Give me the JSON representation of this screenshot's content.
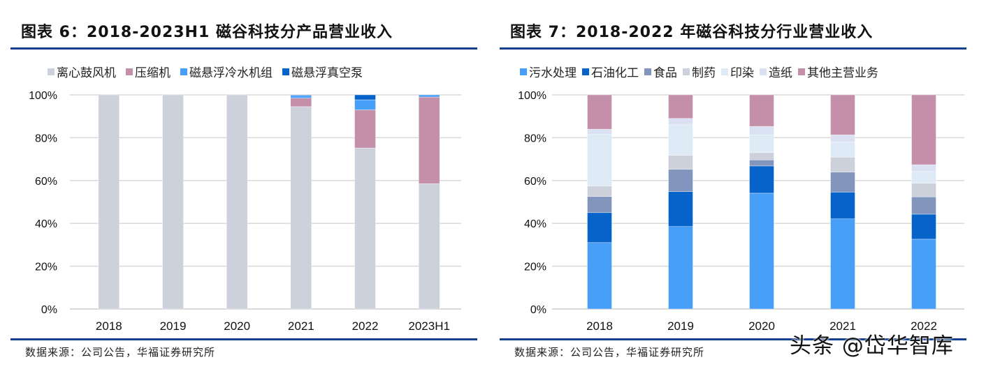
{
  "chart_data": [
    {
      "type": "bar",
      "stacked": true,
      "title": "图表 6：2018-2023H1 磁谷科技分产品营业收入",
      "xlabel": "",
      "ylabel": "",
      "ylim": [
        0,
        100
      ],
      "yticks": [
        "0%",
        "20%",
        "40%",
        "60%",
        "80%",
        "100%"
      ],
      "grid": true,
      "legend_position": "top",
      "categories": [
        "2018",
        "2019",
        "2020",
        "2021",
        "2022",
        "2023H1"
      ],
      "series": [
        {
          "name": "离心鼓风机",
          "color": "#ccd1dc",
          "values": [
            100,
            100,
            100,
            94.5,
            75.2,
            58.5
          ]
        },
        {
          "name": "压缩机",
          "color": "#c48fa8",
          "values": [
            0,
            0,
            0,
            4.0,
            17.8,
            40.5
          ]
        },
        {
          "name": "磁悬浮冷水机组",
          "color": "#479ff8",
          "values": [
            0,
            0,
            0,
            1.2,
            4.7,
            1.0
          ]
        },
        {
          "name": "磁悬浮真空泵",
          "color": "#0563c9",
          "values": [
            0,
            0,
            0,
            0.3,
            2.3,
            0
          ]
        }
      ],
      "source": "数据来源：公司公告，华福证券研究所"
    },
    {
      "type": "bar",
      "stacked": true,
      "title": "图表 7：2018-2022 年磁谷科技分行业营业收入",
      "xlabel": "",
      "ylabel": "",
      "ylim": [
        0,
        100
      ],
      "yticks": [
        "0%",
        "20%",
        "40%",
        "60%",
        "80%",
        "100%"
      ],
      "grid": true,
      "legend_position": "top",
      "categories": [
        "2018",
        "2019",
        "2020",
        "2021",
        "2022"
      ],
      "series": [
        {
          "name": "污水处理",
          "color": "#479ff8",
          "values": [
            31.0,
            38.5,
            54.1,
            42.1,
            32.6
          ]
        },
        {
          "name": "石油化工",
          "color": "#0563c9",
          "values": [
            14.0,
            16.3,
            12.7,
            12.5,
            11.7
          ]
        },
        {
          "name": "食品",
          "color": "#8296bd",
          "values": [
            7.5,
            10.4,
            2.8,
            9.3,
            8.1
          ]
        },
        {
          "name": "制药",
          "color": "#ccd1dc",
          "values": [
            5.0,
            6.6,
            3.4,
            7.0,
            6.3
          ]
        },
        {
          "name": "印染",
          "color": "#deeaf6",
          "values": [
            24.0,
            14.3,
            8.4,
            7.0,
            5.5
          ]
        },
        {
          "name": "造纸",
          "color": "#d9e1f2",
          "values": [
            2.5,
            2.9,
            3.9,
            3.4,
            3.2
          ]
        },
        {
          "name": "其他主营业务",
          "color": "#c48fa8",
          "values": [
            16.0,
            11.0,
            14.7,
            18.7,
            32.6
          ]
        }
      ],
      "source": "数据来源：公司公告，华福证券研究所"
    }
  ],
  "watermark": "头条 @岱华智库",
  "colors": {
    "rule": "#123f8c",
    "grid": "#d9d9d9"
  }
}
